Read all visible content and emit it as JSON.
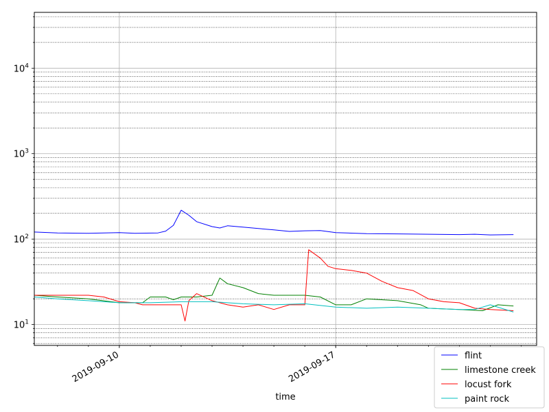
{
  "chart_data": {
    "type": "line",
    "xlabel": "time",
    "ylabel": "",
    "y_scale": "log",
    "ylim": [
      5.7,
      45000
    ],
    "xlim": [
      "2019-09-07T06:00",
      "2019-09-23T12:00"
    ],
    "x_ticks": [
      {
        "value": "2019-09-10T00:00",
        "label": "2019-09-10"
      },
      {
        "value": "2019-09-17T00:00",
        "label": "2019-09-17"
      }
    ],
    "y_ticks": [
      {
        "value": 10,
        "base": "10",
        "exp": "1"
      },
      {
        "value": 100,
        "base": "10",
        "exp": "2"
      },
      {
        "value": 1000,
        "base": "10",
        "exp": "3"
      },
      {
        "value": 10000,
        "base": "10",
        "exp": "4"
      }
    ],
    "grid": true,
    "legend_position": "bottom-right",
    "series": [
      {
        "name": "flint",
        "color": "#0000ff",
        "points": [
          [
            "2019-09-07T06:00",
            121
          ],
          [
            "2019-09-08T00:00",
            118
          ],
          [
            "2019-09-09T00:00",
            117
          ],
          [
            "2019-09-10T00:00",
            119
          ],
          [
            "2019-09-10T12:00",
            117
          ],
          [
            "2019-09-11T06:00",
            118
          ],
          [
            "2019-09-11T12:00",
            124
          ],
          [
            "2019-09-11T18:00",
            145
          ],
          [
            "2019-09-12T00:00",
            218
          ],
          [
            "2019-09-12T06:00",
            190
          ],
          [
            "2019-09-12T12:00",
            160
          ],
          [
            "2019-09-13T00:00",
            140
          ],
          [
            "2019-09-13T06:00",
            135
          ],
          [
            "2019-09-13T12:00",
            143
          ],
          [
            "2019-09-14T00:00",
            138
          ],
          [
            "2019-09-15T00:00",
            128
          ],
          [
            "2019-09-15T12:00",
            123
          ],
          [
            "2019-09-16T00:00",
            125
          ],
          [
            "2019-09-16T12:00",
            126
          ],
          [
            "2019-09-17T00:00",
            119
          ],
          [
            "2019-09-18T00:00",
            116
          ],
          [
            "2019-09-19T00:00",
            115
          ],
          [
            "2019-09-20T00:00",
            114
          ],
          [
            "2019-09-21T00:00",
            113
          ],
          [
            "2019-09-21T12:00",
            114
          ],
          [
            "2019-09-22T00:00",
            112
          ],
          [
            "2019-09-22T18:00",
            113
          ]
        ]
      },
      {
        "name": "limestone creek",
        "color": "#008000",
        "points": [
          [
            "2019-09-07T06:00",
            22
          ],
          [
            "2019-09-08T00:00",
            21
          ],
          [
            "2019-09-09T00:00",
            20
          ],
          [
            "2019-09-10T00:00",
            18
          ],
          [
            "2019-09-10T18:00",
            18
          ],
          [
            "2019-09-11T00:00",
            21
          ],
          [
            "2019-09-11T12:00",
            21
          ],
          [
            "2019-09-11T18:00",
            19.5
          ],
          [
            "2019-09-12T00:00",
            21
          ],
          [
            "2019-09-12T12:00",
            21
          ],
          [
            "2019-09-13T00:00",
            22
          ],
          [
            "2019-09-13T06:00",
            35
          ],
          [
            "2019-09-13T12:00",
            30
          ],
          [
            "2019-09-14T00:00",
            27
          ],
          [
            "2019-09-14T12:00",
            23
          ],
          [
            "2019-09-15T00:00",
            22
          ],
          [
            "2019-09-16T00:00",
            22
          ],
          [
            "2019-09-16T12:00",
            21
          ],
          [
            "2019-09-17T00:00",
            17
          ],
          [
            "2019-09-17T12:00",
            17
          ],
          [
            "2019-09-18T00:00",
            20
          ],
          [
            "2019-09-19T00:00",
            19
          ],
          [
            "2019-09-19T18:00",
            17
          ],
          [
            "2019-09-20T00:00",
            15.5
          ],
          [
            "2019-09-21T00:00",
            15
          ],
          [
            "2019-09-21T18:00",
            14.5
          ],
          [
            "2019-09-22T06:00",
            17
          ],
          [
            "2019-09-22T18:00",
            16.5
          ]
        ]
      },
      {
        "name": "locust fork",
        "color": "#ff0000",
        "points": [
          [
            "2019-09-07T06:00",
            22
          ],
          [
            "2019-09-08T00:00",
            22
          ],
          [
            "2019-09-09T00:00",
            22
          ],
          [
            "2019-09-09T12:00",
            21
          ],
          [
            "2019-09-10T00:00",
            18.5
          ],
          [
            "2019-09-10T12:00",
            18
          ],
          [
            "2019-09-10T18:00",
            17
          ],
          [
            "2019-09-11T00:00",
            17
          ],
          [
            "2019-09-11T12:00",
            17
          ],
          [
            "2019-09-12T00:00",
            17
          ],
          [
            "2019-09-12T03:00",
            11
          ],
          [
            "2019-09-12T06:00",
            19
          ],
          [
            "2019-09-12T12:00",
            23
          ],
          [
            "2019-09-13T00:00",
            19
          ],
          [
            "2019-09-13T12:00",
            17
          ],
          [
            "2019-09-14T00:00",
            16
          ],
          [
            "2019-09-14T12:00",
            17
          ],
          [
            "2019-09-15T00:00",
            15
          ],
          [
            "2019-09-15T12:00",
            17
          ],
          [
            "2019-09-16T00:00",
            17
          ],
          [
            "2019-09-16T03:00",
            75
          ],
          [
            "2019-09-16T12:00",
            60
          ],
          [
            "2019-09-16T18:00",
            48
          ],
          [
            "2019-09-17T00:00",
            45
          ],
          [
            "2019-09-17T12:00",
            43
          ],
          [
            "2019-09-18T00:00",
            40
          ],
          [
            "2019-09-18T12:00",
            32
          ],
          [
            "2019-09-19T00:00",
            27
          ],
          [
            "2019-09-19T12:00",
            25
          ],
          [
            "2019-09-20T00:00",
            20
          ],
          [
            "2019-09-20T12:00",
            18.5
          ],
          [
            "2019-09-21T00:00",
            18
          ],
          [
            "2019-09-21T12:00",
            15.5
          ],
          [
            "2019-09-22T00:00",
            15
          ],
          [
            "2019-09-22T18:00",
            14.5
          ]
        ]
      },
      {
        "name": "paint rock",
        "color": "#00bfbf",
        "points": [
          [
            "2019-09-07T06:00",
            21
          ],
          [
            "2019-09-08T00:00",
            20
          ],
          [
            "2019-09-09T00:00",
            19
          ],
          [
            "2019-09-10T00:00",
            18
          ],
          [
            "2019-09-11T00:00",
            18
          ],
          [
            "2019-09-12T00:00",
            18.5
          ],
          [
            "2019-09-13T00:00",
            18.5
          ],
          [
            "2019-09-14T00:00",
            17.5
          ],
          [
            "2019-09-15T00:00",
            17
          ],
          [
            "2019-09-16T00:00",
            17.5
          ],
          [
            "2019-09-17T00:00",
            16
          ],
          [
            "2019-09-18T00:00",
            15.5
          ],
          [
            "2019-09-19T00:00",
            16
          ],
          [
            "2019-09-20T00:00",
            15.5
          ],
          [
            "2019-09-21T00:00",
            15
          ],
          [
            "2019-09-21T12:00",
            15
          ],
          [
            "2019-09-22T00:00",
            17
          ],
          [
            "2019-09-22T18:00",
            14
          ]
        ]
      }
    ]
  }
}
